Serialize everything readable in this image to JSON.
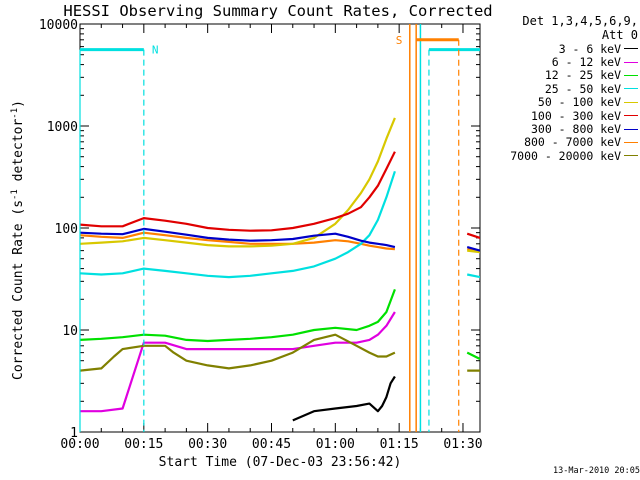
{
  "chart_data": {
    "type": "line",
    "title": "HESSI Observing Summary Count Rates, Corrected",
    "xlabel": "Start Time (07-Dec-03 23:56:42)",
    "ylabel": "Corrected Count Rate (s",
    "ylabel_sup1": "-1",
    "ylabel_mid": " detector",
    "ylabel_sup2": "-1",
    "ylabel_end": ")",
    "yscale": "log",
    "ylim": [
      1,
      10000
    ],
    "xlim_minutes": [
      0,
      94
    ],
    "x_ticks": [
      {
        "minute": 0,
        "label": "00:00"
      },
      {
        "minute": 15,
        "label": "00:15"
      },
      {
        "minute": 30,
        "label": "00:30"
      },
      {
        "minute": 45,
        "label": "00:45"
      },
      {
        "minute": 60,
        "label": "01:00"
      },
      {
        "minute": 75,
        "label": "01:15"
      },
      {
        "minute": 90,
        "label": "01:30"
      }
    ],
    "y_ticks": [
      {
        "value": 1,
        "label": "1"
      },
      {
        "value": 10,
        "label": "10"
      },
      {
        "value": 100,
        "label": "100"
      },
      {
        "value": 1000,
        "label": "1000"
      },
      {
        "value": 10000,
        "label": "10000"
      }
    ],
    "legend_header": [
      "Det 1,3,4,5,6,9,",
      "Att 0"
    ],
    "series": [
      {
        "name": "3 - 6 keV",
        "color": "#000000",
        "x": [
          0,
          50,
          55,
          60,
          65,
          68,
          70,
          71,
          72,
          73,
          74
        ],
        "y": [
          1,
          1.3,
          1.6,
          1.7,
          1.8,
          1.9,
          1.6,
          1.8,
          2.2,
          3,
          3.5
        ]
      },
      {
        "name": "6 - 12 keV",
        "color": "#e000e0",
        "x": [
          0,
          5,
          10,
          15,
          20,
          25,
          30,
          35,
          40,
          45,
          50,
          55,
          60,
          65,
          68,
          70,
          72,
          74
        ],
        "y": [
          1.6,
          1.6,
          1.7,
          7.5,
          7.5,
          6.5,
          6.5,
          6.5,
          6.5,
          6.5,
          6.5,
          7,
          7.5,
          7.5,
          8,
          9,
          11,
          15
        ]
      },
      {
        "name": "12 - 25 keV",
        "color": "#00e000",
        "x": [
          0,
          5,
          10,
          15,
          20,
          25,
          30,
          35,
          40,
          45,
          50,
          55,
          60,
          65,
          68,
          70,
          72,
          74,
          91,
          94,
          97
        ],
        "y": [
          8,
          8.2,
          8.5,
          9,
          8.8,
          8,
          7.8,
          8,
          8.2,
          8.5,
          9,
          10,
          10.5,
          10,
          11,
          12,
          15,
          25,
          6,
          5.2,
          5
        ]
      },
      {
        "name": "25 - 50 keV",
        "color": "#00e0e0",
        "x": [
          0,
          5,
          10,
          15,
          20,
          25,
          30,
          35,
          40,
          45,
          50,
          55,
          60,
          63,
          66,
          68,
          70,
          72,
          74,
          91,
          94,
          97
        ],
        "y": [
          36,
          35,
          36,
          40,
          38,
          36,
          34,
          33,
          34,
          36,
          38,
          42,
          50,
          58,
          70,
          85,
          120,
          200,
          360,
          35,
          33,
          33
        ]
      },
      {
        "name": "50 - 100 keV",
        "color": "#d8c800",
        "x": [
          0,
          5,
          10,
          15,
          20,
          25,
          30,
          35,
          40,
          45,
          50,
          55,
          60,
          63,
          66,
          68,
          70,
          72,
          74,
          91,
          94,
          97
        ],
        "y": [
          70,
          72,
          74,
          80,
          76,
          72,
          68,
          66,
          66,
          67,
          70,
          80,
          110,
          150,
          220,
          300,
          450,
          750,
          1200,
          60,
          58,
          58
        ]
      },
      {
        "name": "100 - 300 keV",
        "color": "#e00000",
        "x": [
          0,
          5,
          10,
          15,
          20,
          25,
          30,
          35,
          40,
          45,
          50,
          55,
          60,
          63,
          66,
          68,
          70,
          72,
          74,
          91,
          94,
          97
        ],
        "y": [
          108,
          104,
          104,
          125,
          118,
          110,
          100,
          96,
          94,
          95,
          100,
          110,
          125,
          138,
          160,
          200,
          260,
          380,
          560,
          88,
          80,
          80
        ]
      },
      {
        "name": "300 - 800 keV",
        "color": "#0000c8",
        "x": [
          0,
          5,
          10,
          15,
          20,
          25,
          30,
          35,
          40,
          45,
          50,
          55,
          60,
          63,
          66,
          68,
          70,
          72,
          74,
          91,
          94,
          97
        ],
        "y": [
          90,
          88,
          87,
          98,
          92,
          86,
          80,
          77,
          75,
          76,
          78,
          84,
          88,
          82,
          75,
          72,
          70,
          68,
          65,
          65,
          60,
          60
        ]
      },
      {
        "name": "800 - 7000 keV",
        "color": "#ff8000",
        "x": [
          0,
          5,
          10,
          15,
          20,
          25,
          30,
          35,
          40,
          45,
          50,
          55,
          60,
          63,
          66,
          68,
          70,
          72,
          74,
          91,
          94,
          97
        ],
        "y": [
          85,
          82,
          80,
          90,
          85,
          80,
          76,
          73,
          70,
          70,
          70,
          72,
          76,
          74,
          70,
          67,
          65,
          63,
          62,
          62,
          58,
          58
        ]
      },
      {
        "name": "7000 - 20000 keV",
        "color": "#808000",
        "x": [
          0,
          5,
          8,
          10,
          15,
          20,
          22,
          25,
          30,
          35,
          40,
          45,
          50,
          55,
          60,
          65,
          68,
          70,
          72,
          74,
          91,
          94,
          97
        ],
        "y": [
          4,
          4.2,
          5.5,
          6.5,
          7,
          7,
          6,
          5,
          4.5,
          4.2,
          4.5,
          5,
          6,
          8,
          9,
          7,
          6,
          5.5,
          5.5,
          6,
          4,
          4,
          4
        ]
      }
    ],
    "annotations": [
      {
        "label": "N",
        "color": "#00e0e0",
        "type": "night",
        "bars": [
          {
            "x0": -2,
            "x1": 15,
            "y": 5600
          },
          {
            "x0": 82,
            "x1": 99,
            "y": 5600
          }
        ],
        "vlines": [
          15,
          82,
          99
        ],
        "solid_lines": [
          80
        ]
      },
      {
        "label": "S",
        "color": "#ff8000",
        "type": "saa",
        "bars": [
          {
            "x0": 79,
            "x1": 89,
            "y": 7000
          }
        ],
        "vlines": [
          89
        ],
        "solid_lines": [
          77.5,
          79
        ]
      }
    ],
    "grid": false,
    "legend_position": "right"
  },
  "footer": {
    "stamp": "13-Mar-2010 20:05"
  }
}
